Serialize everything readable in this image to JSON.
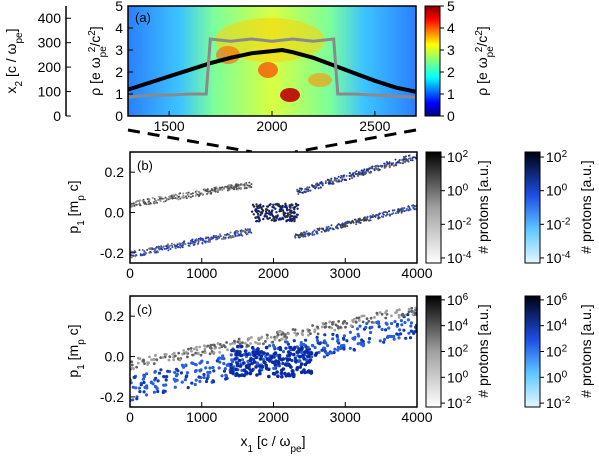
{
  "chart_data": [
    {
      "id": "a",
      "type": "heatmap",
      "panel_label": "(a)",
      "xlim": [
        1300,
        2700
      ],
      "x_ticks": [
        1500,
        2000,
        2500
      ],
      "x_tick_labels": [
        "1500",
        "2000",
        "2500"
      ],
      "left_axis": {
        "label_main": "x",
        "label_sub": "2",
        "label_rest": " [c / ω",
        "label_sub2": "pe",
        "label_end": "]",
        "ylim": [
          0,
          450
        ],
        "ticks": [
          0,
          100,
          200,
          300,
          400
        ],
        "tick_labels": [
          "0",
          "100",
          "200",
          "300",
          "400"
        ]
      },
      "right_axis": {
        "label_main": "ρ [e ω",
        "label_sub": "pe",
        "label_sup": "2",
        "label_rest": "/c",
        "label_sup2": "2",
        "label_end": "]",
        "ylim": [
          0,
          5
        ],
        "ticks": [
          0,
          1,
          2,
          3,
          4,
          5
        ],
        "tick_labels": [
          "0",
          "1",
          "2",
          "3",
          "4",
          "5"
        ]
      },
      "colorbar": {
        "ticks": [
          0,
          1,
          2,
          3,
          4,
          5
        ],
        "tick_labels": [
          "0",
          "1",
          "2",
          "3",
          "4",
          "5"
        ],
        "label_main": "ρ [e ω",
        "label_sub": "pe",
        "label_sup": "2",
        "label_rest": "/c",
        "label_sup2": "2",
        "label_end": "]",
        "colormap": "jet"
      },
      "series": [
        {
          "style": "black-thick",
          "x": [
            1300,
            1400,
            1500,
            1600,
            1700,
            1800,
            1900,
            2000,
            2050,
            2100,
            2200,
            2300,
            2400,
            2500,
            2600,
            2700
          ],
          "y": [
            1.2,
            1.5,
            1.8,
            2.1,
            2.4,
            2.65,
            2.85,
            2.95,
            3.0,
            2.9,
            2.65,
            2.3,
            1.95,
            1.6,
            1.3,
            1.1
          ]
        },
        {
          "style": "gray",
          "x": [
            1300,
            1400,
            1500,
            1600,
            1680,
            1700,
            1800,
            1900,
            2000,
            2100,
            2200,
            2300,
            2320,
            2400,
            2500,
            2600,
            2700
          ],
          "y": [
            0.85,
            0.95,
            0.95,
            1.0,
            1.0,
            3.5,
            3.4,
            3.5,
            3.4,
            3.5,
            3.4,
            3.5,
            1.0,
            1.0,
            0.95,
            0.9,
            0.85
          ]
        }
      ]
    },
    {
      "id": "b",
      "type": "scatter",
      "panel_label": "(b)",
      "xlim": [
        0,
        4000
      ],
      "ylim": [
        -0.25,
        0.3
      ],
      "x_ticks": [
        0,
        1000,
        2000,
        3000,
        4000
      ],
      "x_tick_labels": [
        "0",
        "1000",
        "2000",
        "3000",
        "4000"
      ],
      "y_ticks": [
        -0.2,
        0.0,
        0.2
      ],
      "y_tick_labels": [
        "-0.2",
        "0.0",
        "0.2"
      ],
      "ylabel_main": "p",
      "ylabel_sub": "1",
      "ylabel_rest": " [m",
      "ylabel_sub2": "p",
      "ylabel_end": " c]",
      "colorbars": [
        {
          "colormap": "gray",
          "label": "# protons [a.u.]",
          "tick_labels": [
            {
              "base": "10",
              "exp": "2"
            },
            {
              "base": "10",
              "exp": "0"
            },
            {
              "base": "10",
              "exp": "-2"
            },
            {
              "base": "10",
              "exp": "-4"
            }
          ]
        },
        {
          "colormap": "blue",
          "label": "# protons [a.u.]",
          "tick_labels": [
            {
              "base": "10",
              "exp": "2"
            },
            {
              "base": "10",
              "exp": "0"
            },
            {
              "base": "10",
              "exp": "-2"
            },
            {
              "base": "10",
              "exp": "-4"
            }
          ]
        }
      ]
    },
    {
      "id": "c",
      "type": "scatter",
      "panel_label": "(c)",
      "xlim": [
        0,
        4000
      ],
      "ylim": [
        -0.25,
        0.3
      ],
      "x_ticks": [
        0,
        1000,
        2000,
        3000,
        4000
      ],
      "x_tick_labels": [
        "0",
        "1000",
        "2000",
        "3000",
        "4000"
      ],
      "y_ticks": [
        -0.2,
        0.0,
        0.2
      ],
      "y_tick_labels": [
        "-0.2",
        "0.0",
        "0.2"
      ],
      "ylabel_main": "p",
      "ylabel_sub": "1",
      "ylabel_rest": " [m",
      "ylabel_sub2": "p",
      "ylabel_end": " c]",
      "xlabel_main": "x",
      "xlabel_sub": "1",
      "xlabel_rest": " [c / ω",
      "xlabel_sub2": "pe",
      "xlabel_end": "]",
      "colorbars": [
        {
          "colormap": "gray",
          "label": "# protons [a.u.]",
          "tick_labels": [
            {
              "base": "10",
              "exp": "6"
            },
            {
              "base": "10",
              "exp": "4"
            },
            {
              "base": "10",
              "exp": "2"
            },
            {
              "base": "10",
              "exp": "0"
            },
            {
              "base": "10",
              "exp": "-2"
            }
          ]
        },
        {
          "colormap": "blue",
          "label": "# protons [a.u.]",
          "tick_labels": [
            {
              "base": "10",
              "exp": "6"
            },
            {
              "base": "10",
              "exp": "4"
            },
            {
              "base": "10",
              "exp": "2"
            },
            {
              "base": "10",
              "exp": "0"
            },
            {
              "base": "10",
              "exp": "-2"
            }
          ]
        }
      ]
    }
  ],
  "zoom_lines": {
    "from_x": [
      1300,
      2700
    ],
    "to_x": [
      1700,
      2300
    ]
  }
}
